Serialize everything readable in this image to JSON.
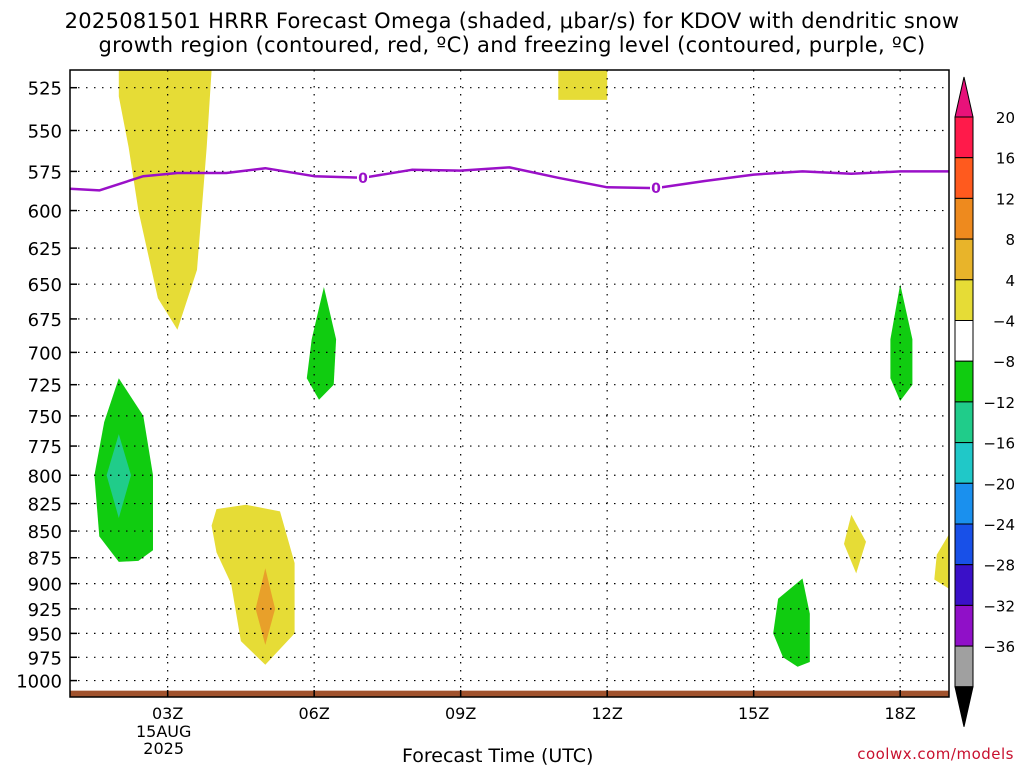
{
  "title_line1": "2025081501 HRRR Forecast Omega (shaded, μbar/s) for KDOV with dendritic snow",
  "title_line2": "growth region (contoured, red, ºC) and freezing level (contoured, purple, ºC)",
  "watermark": "coolwx.com/models",
  "chart_data": {
    "type": "heatmap",
    "title": "2025081501 HRRR Forecast Omega (shaded, μbar/s) for KDOV with dendritic snow growth region (contoured, red, ºC) and freezing level (contoured, purple, ºC)",
    "xlabel": "Forecast Time (UTC)",
    "ylabel": "",
    "y_scale": "log",
    "y_inverted": true,
    "ylim": [
      1018,
      515
    ],
    "xlim": [
      1,
      19
    ],
    "grid": true,
    "y_ticks": [
      525,
      550,
      575,
      600,
      625,
      650,
      675,
      700,
      725,
      750,
      775,
      800,
      825,
      850,
      875,
      900,
      925,
      950,
      975,
      1000
    ],
    "x_ticks": [
      {
        "hour": 3,
        "label": "03Z",
        "sub": [
          "15AUG",
          "2025"
        ]
      },
      {
        "hour": 6,
        "label": "06Z",
        "sub": []
      },
      {
        "hour": 9,
        "label": "09Z",
        "sub": []
      },
      {
        "hour": 12,
        "label": "12Z",
        "sub": []
      },
      {
        "hour": 15,
        "label": "15Z",
        "sub": []
      },
      {
        "hour": 18,
        "label": "18Z",
        "sub": []
      }
    ],
    "colorbar": {
      "labels": [
        "20",
        "16",
        "12",
        "8",
        "4",
        "−4",
        "−8",
        "−12",
        "−16",
        "−20",
        "−24",
        "−28",
        "−32",
        "−36"
      ],
      "colors": [
        "#ff1a4a",
        "#ff5a1e",
        "#ee8a1e",
        "#e8b42a",
        "#e6dc36",
        "#ffffff",
        "#10cc10",
        "#20cc8a",
        "#20c8c8",
        "#1a90ee",
        "#1850e8",
        "#3a10c8",
        "#9010c8",
        "#a0a0a0"
      ],
      "top_triangle": "#e8127a",
      "bottom_triangle": "#000000"
    },
    "freezing_level": {
      "value_label": "0",
      "color": "#9a10c8",
      "points": [
        {
          "h": 1.0,
          "p": 586
        },
        {
          "h": 1.6,
          "p": 587
        },
        {
          "h": 2.5,
          "p": 578
        },
        {
          "h": 3.2,
          "p": 576
        },
        {
          "h": 4.2,
          "p": 576
        },
        {
          "h": 5.0,
          "p": 573
        },
        {
          "h": 6.0,
          "p": 578
        },
        {
          "h": 7.0,
          "p": 579
        },
        {
          "h": 8.0,
          "p": 574
        },
        {
          "h": 9.0,
          "p": 574.5
        },
        {
          "h": 10.0,
          "p": 572.5
        },
        {
          "h": 11.0,
          "p": 579
        },
        {
          "h": 12.0,
          "p": 585
        },
        {
          "h": 13.0,
          "p": 585.5
        },
        {
          "h": 14.0,
          "p": 581
        },
        {
          "h": 15.0,
          "p": 577
        },
        {
          "h": 16.0,
          "p": 575
        },
        {
          "h": 17.0,
          "p": 576.5
        },
        {
          "h": 18.0,
          "p": 575
        },
        {
          "h": 19.0,
          "p": 575
        }
      ],
      "labels_at_hours": [
        7.0,
        13.0
      ]
    },
    "surface": {
      "color": "#a0522d",
      "pressure_top": 1011
    }
  }
}
